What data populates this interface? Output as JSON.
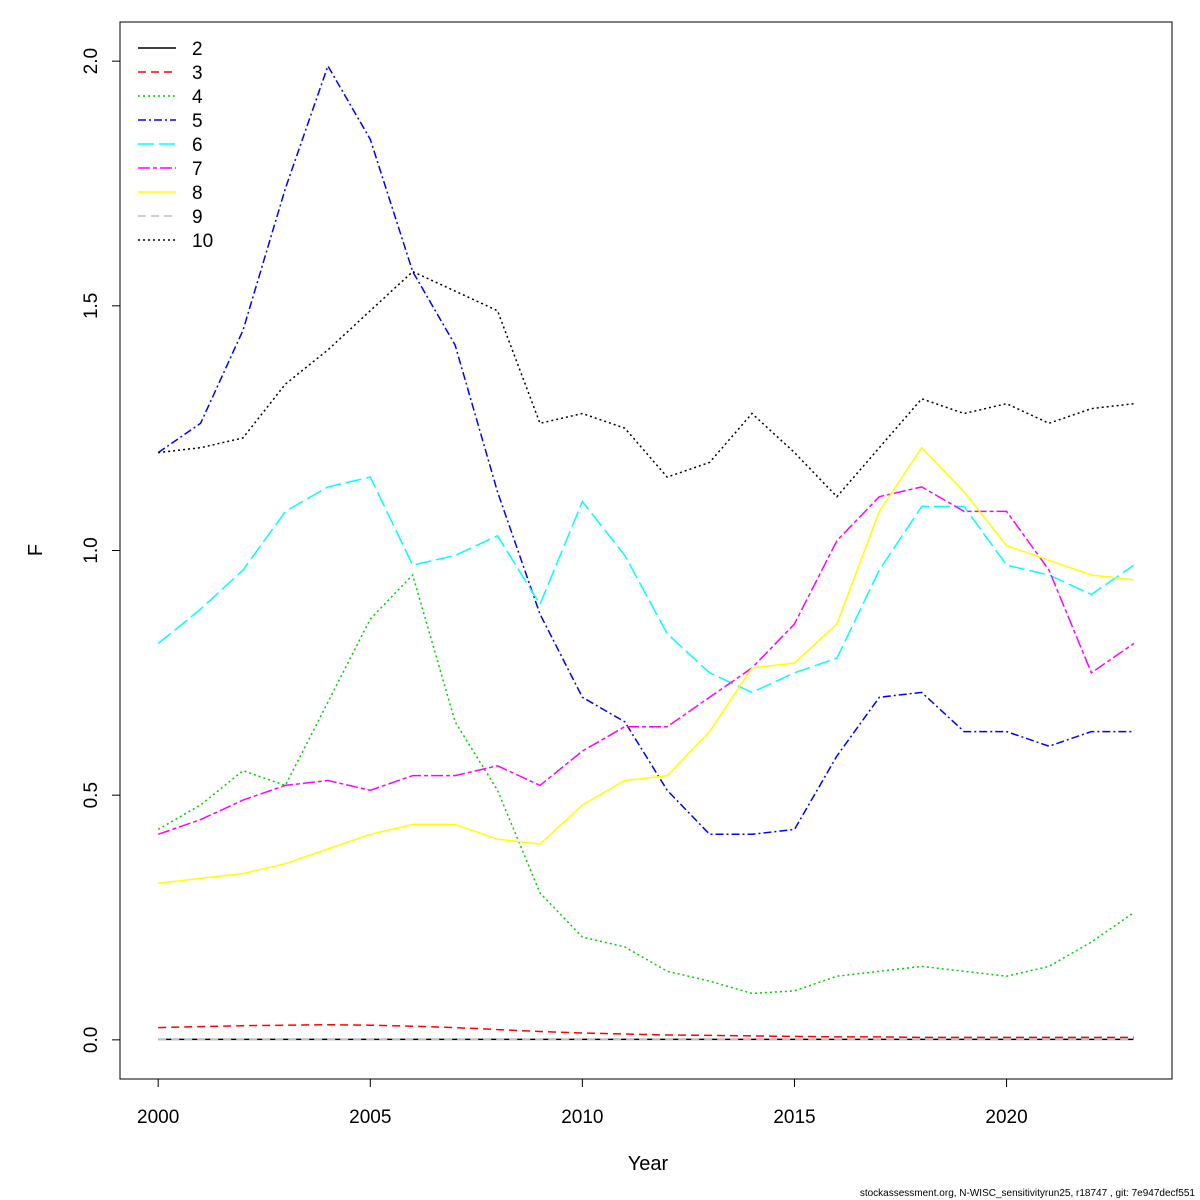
{
  "chart_data": {
    "type": "line",
    "xlabel": "Year",
    "ylabel": "F",
    "xlim": [
      1999.1,
      2023.9
    ],
    "ylim": [
      -0.08,
      2.08
    ],
    "xticks": [
      2000,
      2005,
      2010,
      2015,
      2020
    ],
    "xtick_labels": [
      "2000",
      "2005",
      "2010",
      "2015",
      "2020"
    ],
    "yticks": [
      0,
      0.5,
      1,
      1.5,
      2
    ],
    "ytick_labels": [
      "0.0",
      "0.5",
      "1.0",
      "1.5",
      "2.0"
    ],
    "grid": false,
    "legend_position": "top-left",
    "x": [
      2000,
      2001,
      2002,
      2003,
      2004,
      2005,
      2006,
      2007,
      2008,
      2009,
      2010,
      2011,
      2012,
      2013,
      2014,
      2015,
      2016,
      2017,
      2018,
      2019,
      2020,
      2021,
      2022,
      2023
    ],
    "series": [
      {
        "name": "2",
        "color": "#000000",
        "dash": "",
        "values": [
          0.001,
          0.001,
          0.001,
          0.001,
          0.001,
          0.001,
          0.001,
          0.001,
          0.001,
          0.001,
          0.001,
          0.001,
          0.001,
          0.001,
          0.001,
          0.001,
          0.001,
          0.001,
          0.001,
          0.001,
          0.001,
          0.001,
          0.001,
          0.001
        ]
      },
      {
        "name": "3",
        "color": "#ff0000",
        "dash": "8,5",
        "values": [
          0.025,
          0.027,
          0.029,
          0.03,
          0.031,
          0.03,
          0.028,
          0.025,
          0.021,
          0.017,
          0.014,
          0.012,
          0.01,
          0.009,
          0.008,
          0.007,
          0.006,
          0.006,
          0.005,
          0.005,
          0.005,
          0.005,
          0.005,
          0.005
        ]
      },
      {
        "name": "4",
        "color": "#00cd00",
        "dash": "2,3",
        "values": [
          0.43,
          0.48,
          0.55,
          0.52,
          0.69,
          0.86,
          0.95,
          0.65,
          0.51,
          0.3,
          0.21,
          0.19,
          0.14,
          0.12,
          0.095,
          0.1,
          0.13,
          0.14,
          0.15,
          0.14,
          0.13,
          0.15,
          0.2,
          0.26
        ]
      },
      {
        "name": "5",
        "color": "#0000ff",
        "dash": "8,3,2,3",
        "values": [
          1.2,
          1.26,
          1.45,
          1.74,
          1.99,
          1.84,
          1.57,
          1.42,
          1.12,
          0.87,
          0.7,
          0.65,
          0.51,
          0.42,
          0.42,
          0.43,
          0.58,
          0.7,
          0.71,
          0.63,
          0.63,
          0.6,
          0.63,
          0.63
        ]
      },
      {
        "name": "6",
        "color": "#00ffff",
        "dash": "16,5",
        "values": [
          0.81,
          0.88,
          0.96,
          1.08,
          1.13,
          1.15,
          0.97,
          0.99,
          1.03,
          0.89,
          1.1,
          0.99,
          0.83,
          0.75,
          0.71,
          0.75,
          0.78,
          0.96,
          1.09,
          1.09,
          0.97,
          0.95,
          0.91,
          0.97
        ]
      },
      {
        "name": "7",
        "color": "#ff00ff",
        "dash": "12,3,4,3",
        "values": [
          0.42,
          0.45,
          0.49,
          0.52,
          0.53,
          0.51,
          0.54,
          0.54,
          0.56,
          0.52,
          0.59,
          0.64,
          0.64,
          0.7,
          0.76,
          0.85,
          1.02,
          1.11,
          1.13,
          1.08,
          1.08,
          0.96,
          0.75,
          0.81
        ]
      },
      {
        "name": "8",
        "color": "#ffff00",
        "dash": "",
        "values": [
          0.32,
          0.33,
          0.34,
          0.36,
          0.39,
          0.42,
          0.44,
          0.44,
          0.41,
          0.4,
          0.48,
          0.53,
          0.54,
          0.63,
          0.76,
          0.77,
          0.85,
          1.08,
          1.21,
          1.12,
          1.01,
          0.98,
          0.95,
          0.94
        ]
      },
      {
        "name": "9",
        "color": "#bebebe",
        "dash": "8,5",
        "values": [
          0.001,
          0.001,
          0.001,
          0.001,
          0.001,
          0.001,
          0.001,
          0.001,
          0.001,
          0.001,
          0.001,
          0.001,
          0.001,
          0.001,
          0.001,
          0.001,
          0.001,
          0.001,
          0.001,
          0.001,
          0.001,
          0.001,
          0.001,
          0.001
        ]
      },
      {
        "name": "10",
        "color": "#000000",
        "dash": "2,3",
        "values": [
          1.2,
          1.21,
          1.23,
          1.34,
          1.41,
          1.49,
          1.57,
          1.53,
          1.49,
          1.26,
          1.28,
          1.25,
          1.15,
          1.18,
          1.28,
          1.2,
          1.11,
          1.21,
          1.31,
          1.28,
          1.3,
          1.26,
          1.29,
          1.3
        ]
      }
    ]
  },
  "footer": {
    "note": "stockassessment.org, N-WISC_sensitivityrun25, r18747 , git: 7e947decf551"
  }
}
